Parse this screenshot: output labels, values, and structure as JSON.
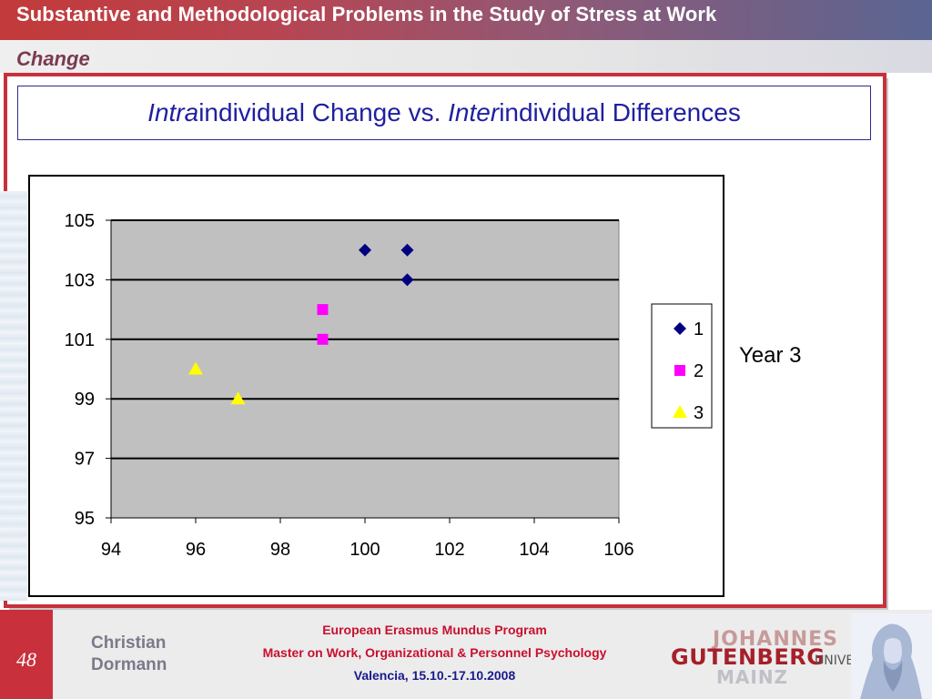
{
  "header": {
    "title": "Substantive and Methodological Problems in the Study of Stress at Work",
    "subtitle": "Change"
  },
  "slide_heading": {
    "part1_italic": "Intra",
    "part1_rest": "individual Change vs. ",
    "part2_italic": "Inter",
    "part2_rest": "individual Differences"
  },
  "annotation": "Year 3",
  "chart_data": {
    "type": "scatter",
    "xlim": [
      94,
      106
    ],
    "ylim": [
      95,
      105
    ],
    "x_ticks": [
      "94",
      "96",
      "98",
      "100",
      "102",
      "104",
      "106"
    ],
    "y_ticks": [
      "95",
      "97",
      "99",
      "101",
      "103",
      "105"
    ],
    "grid": "horizontal major gridlines",
    "plot_background": "#c0c0c0",
    "legend_position": "right",
    "series": [
      {
        "name": "1",
        "marker": "diamond",
        "color": "#000080",
        "points": [
          [
            100,
            104
          ],
          [
            101,
            104
          ],
          [
            101,
            103
          ]
        ]
      },
      {
        "name": "2",
        "marker": "square",
        "color": "#ff00ff",
        "points": [
          [
            99,
            102
          ],
          [
            99,
            101
          ]
        ]
      },
      {
        "name": "3",
        "marker": "triangle",
        "color": "#ffff00",
        "points": [
          [
            96,
            100
          ],
          [
            97,
            99
          ]
        ]
      }
    ]
  },
  "footer": {
    "page_number": "48",
    "author_line1": "Christian",
    "author_line2": "Dormann",
    "program_line1": "European Erasmus Mundus Program",
    "program_line2": "Master on Work, Organizational & Personnel Psychology",
    "program_line3": "Valencia, 15.10.-17.10.2008",
    "logo_line1": "JOHANNES",
    "logo_line2": "GUTENBERG",
    "logo_line3": "UNIVERSITÄT",
    "logo_line4": "MAINZ"
  },
  "colors": {
    "accent_red": "#c8303c",
    "heading_blue": "#1f1fa0"
  }
}
